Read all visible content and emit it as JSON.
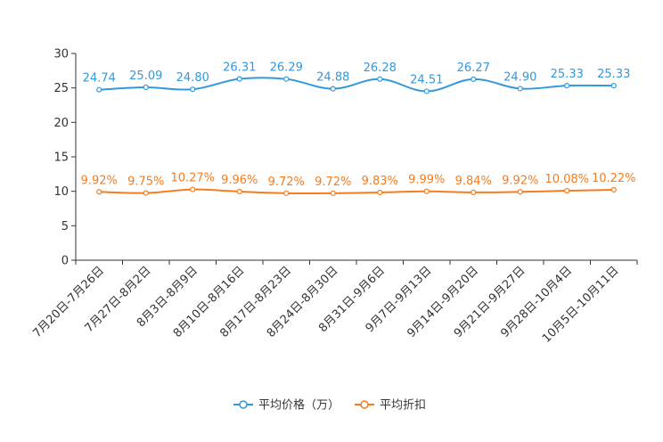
{
  "chart_data": {
    "type": "line",
    "categories": [
      "7月20日-7月26日",
      "7月27日-8月2日",
      "8月3日-8月9日",
      "8月10日-8月16日",
      "8月17日-8月23日",
      "8月24日-8月30日",
      "8月31日-9月6日",
      "9月7日-9月13日",
      "9月14日-9月20日",
      "9月21日-9月27日",
      "9月28日-10月4日",
      "10月5日-10月11日"
    ],
    "yticks": [
      "0",
      "5",
      "10",
      "15",
      "20",
      "25",
      "30"
    ],
    "ylim": [
      0,
      30
    ],
    "series": [
      {
        "name": "平均价格（万）",
        "color": "#3398DB",
        "values": [
          24.74,
          25.09,
          24.8,
          26.31,
          26.29,
          24.88,
          26.28,
          24.51,
          26.27,
          24.9,
          25.33,
          25.33
        ],
        "labels": [
          "24.74",
          "25.09",
          "24.80",
          "26.31",
          "26.29",
          "24.88",
          "26.28",
          "24.51",
          "26.27",
          "24.90",
          "25.33",
          "25.33"
        ]
      },
      {
        "name": "平均折扣",
        "color": "#F57C1F",
        "values": [
          9.92,
          9.75,
          10.27,
          9.96,
          9.72,
          9.72,
          9.83,
          9.99,
          9.84,
          9.92,
          10.08,
          10.22
        ],
        "labels": [
          "9.92%",
          "9.75%",
          "10.27%",
          "9.96%",
          "9.72%",
          "9.72%",
          "9.83%",
          "9.99%",
          "9.84%",
          "9.92%",
          "10.08%",
          "10.22%"
        ]
      }
    ],
    "legend_position": "bottom-center"
  }
}
